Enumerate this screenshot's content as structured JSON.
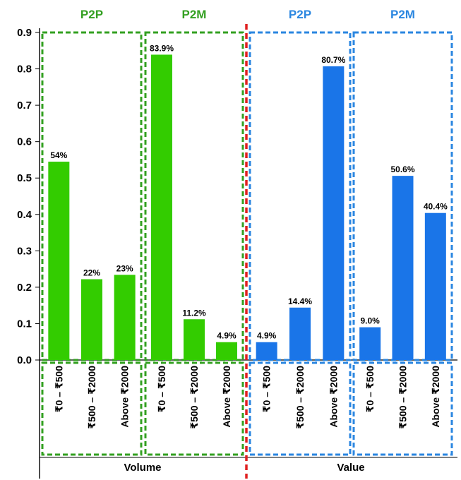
{
  "chart_data": {
    "type": "bar",
    "colors": {
      "green": "#33cc00",
      "blue": "#1a75e8",
      "green_box": "#33a021",
      "blue_box": "#2a86e0",
      "divider": "#e02020"
    },
    "y_ticks": [
      "0.0",
      "0.1",
      "0.2",
      "0.3",
      "0.4",
      "0.5",
      "0.6",
      "0.7",
      "0.8",
      "0.9"
    ],
    "ylim": [
      0,
      0.9
    ],
    "sections": [
      {
        "name": "Volume",
        "groups": [
          {
            "title": "P2P",
            "color": "green",
            "bars": [
              {
                "category": "₹0 – ₹500",
                "value": 0.545,
                "label": "54%"
              },
              {
                "category": "₹500 – ₹2000",
                "value": 0.222,
                "label": "22%"
              },
              {
                "category": "Above ₹2000",
                "value": 0.234,
                "label": "23%"
              }
            ]
          },
          {
            "title": "P2M",
            "color": "green",
            "bars": [
              {
                "category": "₹0 – ₹500",
                "value": 0.839,
                "label": "83.9%"
              },
              {
                "category": "₹500 – ₹2000",
                "value": 0.112,
                "label": "11.2%"
              },
              {
                "category": "Above ₹2000",
                "value": 0.049,
                "label": "4.9%"
              }
            ]
          }
        ]
      },
      {
        "name": "Value",
        "groups": [
          {
            "title": "P2P",
            "color": "blue",
            "bars": [
              {
                "category": "₹0 – ₹500",
                "value": 0.049,
                "label": "4.9%"
              },
              {
                "category": "₹500 – ₹2000",
                "value": 0.144,
                "label": "14.4%"
              },
              {
                "category": "Above ₹2000",
                "value": 0.807,
                "label": "80.7%"
              }
            ]
          },
          {
            "title": "P2M",
            "color": "blue",
            "bars": [
              {
                "category": "₹0 – ₹500",
                "value": 0.09,
                "label": "9.0%"
              },
              {
                "category": "₹500 – ₹2000",
                "value": 0.506,
                "label": "50.6%"
              },
              {
                "category": "Above ₹2000",
                "value": 0.404,
                "label": "40.4%"
              }
            ]
          }
        ]
      }
    ]
  }
}
